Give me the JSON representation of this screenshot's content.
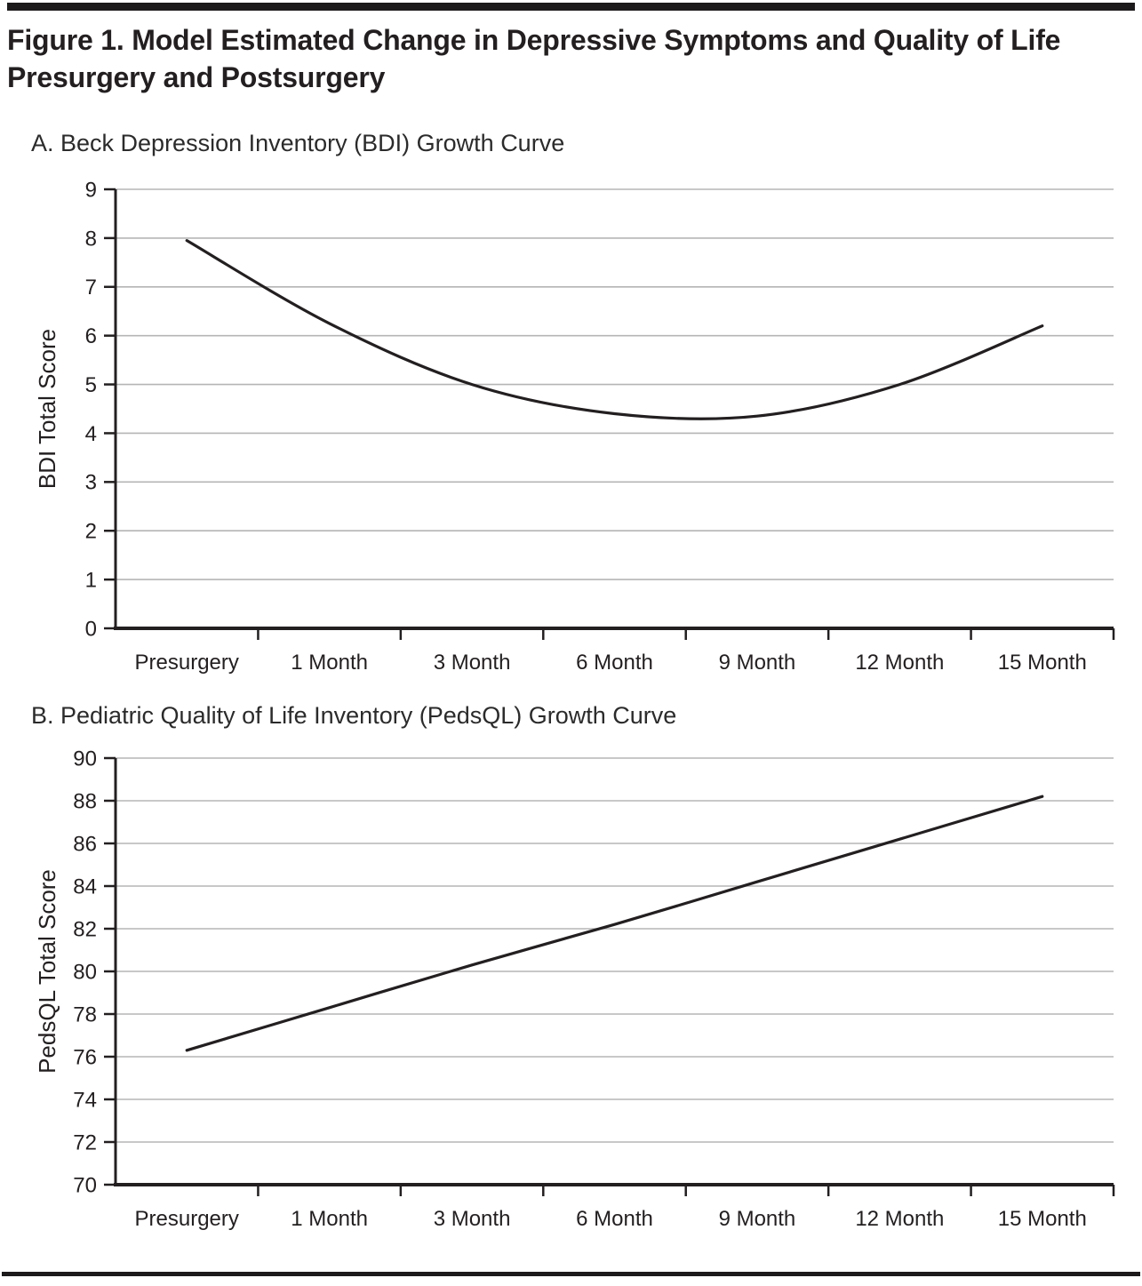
{
  "figure": {
    "title_lines": [
      "Figure 1. Model Estimated Change in Depressive Symptoms and Quality of Life",
      "Presurgery and Postsurgery"
    ]
  },
  "colors": {
    "ink": "#231f20",
    "grid": "#b5b5b5",
    "background": "#ffffff"
  },
  "chart_data": [
    {
      "type": "line",
      "panel_label": "A. Beck Depression Inventory (BDI) Growth Curve",
      "categories": [
        "Presurgery",
        "1 Month",
        "3 Month",
        "6 Month",
        "9 Month",
        "12 Month",
        "15 Month"
      ],
      "values": [
        7.95,
        6.25,
        5.0,
        4.4,
        4.35,
        5.0,
        6.2
      ],
      "title": "",
      "xlabel": "",
      "ylabel": "BDI Total Score",
      "ylim": [
        0,
        9
      ],
      "ytick_step": 1,
      "grid": true,
      "legend": "none",
      "line_color": "#231f20",
      "shape_note": "U-shaped quadratic growth curve; minimum of about 4.3 occurs between 6 Month and 9 Month"
    },
    {
      "type": "line",
      "panel_label": "B. Pediatric Quality of Life Inventory (PedsQL) Growth Curve",
      "categories": [
        "Presurgery",
        "1 Month",
        "3 Month",
        "6 Month",
        "9 Month",
        "12 Month",
        "15 Month"
      ],
      "values": [
        76.3,
        78.3,
        80.3,
        82.2,
        84.2,
        86.2,
        88.2
      ],
      "title": "",
      "xlabel": "",
      "ylabel": "PedsQL Total Score",
      "ylim": [
        70,
        90
      ],
      "ytick_step": 2,
      "grid": true,
      "legend": "none",
      "line_color": "#231f20",
      "shape_note": "Near-linear increase from about 76.3 presurgery to about 88.2 at 15 months"
    }
  ]
}
